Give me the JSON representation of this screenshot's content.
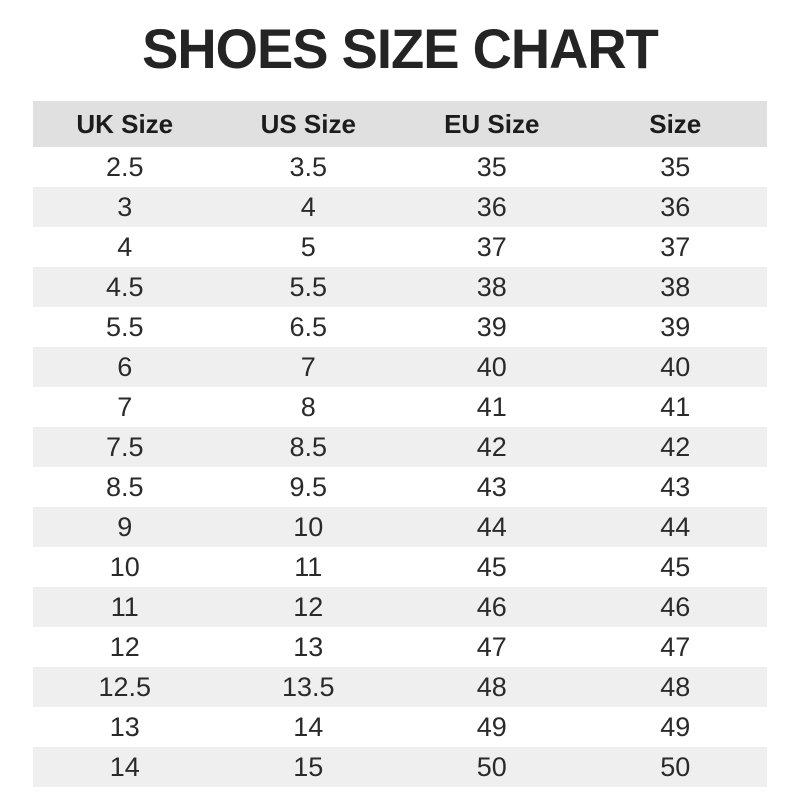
{
  "title": "SHOES SIZE CHART",
  "colors": {
    "header_bg": "#e0e0e0",
    "row_alt_bg": "#efefef",
    "title_text": "#242424",
    "body_text": "#2a2a2a"
  },
  "table": {
    "headers": [
      "UK Size",
      "US Size",
      "EU Size",
      "Size"
    ],
    "rows": [
      [
        "2.5",
        "3.5",
        "35",
        "35"
      ],
      [
        "3",
        "4",
        "36",
        "36"
      ],
      [
        "4",
        "5",
        "37",
        "37"
      ],
      [
        "4.5",
        "5.5",
        "38",
        "38"
      ],
      [
        "5.5",
        "6.5",
        "39",
        "39"
      ],
      [
        "6",
        "7",
        "40",
        "40"
      ],
      [
        "7",
        "8",
        "41",
        "41"
      ],
      [
        "7.5",
        "8.5",
        "42",
        "42"
      ],
      [
        "8.5",
        "9.5",
        "43",
        "43"
      ],
      [
        "9",
        "10",
        "44",
        "44"
      ],
      [
        "10",
        "11",
        "45",
        "45"
      ],
      [
        "11",
        "12",
        "46",
        "46"
      ],
      [
        "12",
        "13",
        "47",
        "47"
      ],
      [
        "12.5",
        "13.5",
        "48",
        "48"
      ],
      [
        "13",
        "14",
        "49",
        "49"
      ],
      [
        "14",
        "15",
        "50",
        "50"
      ]
    ]
  },
  "chart_data": {
    "type": "table",
    "title": "SHOES SIZE CHART",
    "columns": [
      "UK Size",
      "US Size",
      "EU Size",
      "Size"
    ],
    "rows": [
      [
        "2.5",
        "3.5",
        "35",
        "35"
      ],
      [
        "3",
        "4",
        "36",
        "36"
      ],
      [
        "4",
        "5",
        "37",
        "37"
      ],
      [
        "4.5",
        "5.5",
        "38",
        "38"
      ],
      [
        "5.5",
        "6.5",
        "39",
        "39"
      ],
      [
        "6",
        "7",
        "40",
        "40"
      ],
      [
        "7",
        "8",
        "41",
        "41"
      ],
      [
        "7.5",
        "8.5",
        "42",
        "42"
      ],
      [
        "8.5",
        "9.5",
        "43",
        "43"
      ],
      [
        "9",
        "10",
        "44",
        "44"
      ],
      [
        "10",
        "11",
        "45",
        "45"
      ],
      [
        "11",
        "12",
        "46",
        "46"
      ],
      [
        "12",
        "13",
        "47",
        "47"
      ],
      [
        "12.5",
        "13.5",
        "48",
        "48"
      ],
      [
        "13",
        "14",
        "49",
        "49"
      ],
      [
        "14",
        "15",
        "50",
        "50"
      ]
    ],
    "layout": {
      "zebra_striping": true,
      "first_data_row_background": "white",
      "header_background": "#e0e0e0",
      "alt_row_background": "#efefef"
    }
  }
}
